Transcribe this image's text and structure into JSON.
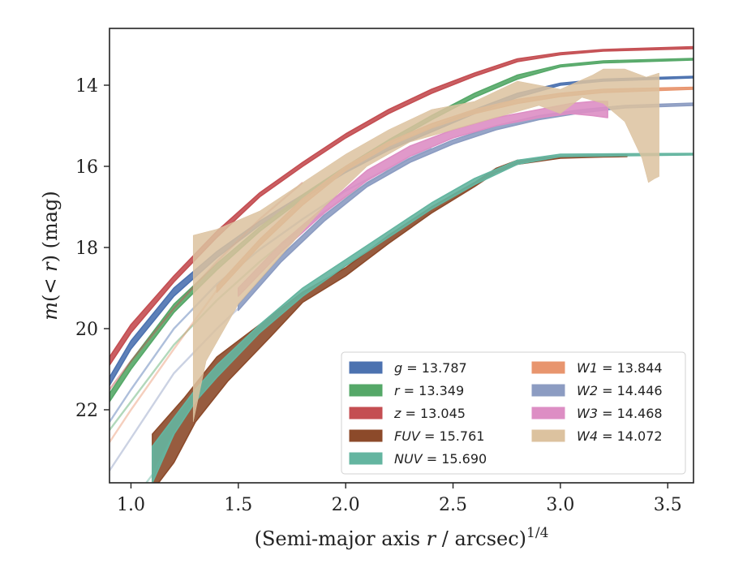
{
  "chart_data": {
    "type": "line",
    "title": "",
    "xlabel": "(Semi-major axis r / arcsec)",
    "xlabel_var": "r",
    "xlabel_prefix": "(Semi-major axis ",
    "xlabel_suffix": " / arcsec)",
    "xlabel_sup": "1/4",
    "ylabel_prefix": "m(< ",
    "ylabel_var": "r",
    "ylabel_suffix": ") (mag)",
    "xlim": [
      0.9,
      3.62
    ],
    "ylim": [
      23.8,
      12.6
    ],
    "y_inverted": true,
    "xticks": [
      1.0,
      1.5,
      2.0,
      2.5,
      3.0,
      3.5
    ],
    "xtick_labels": [
      "1.0",
      "1.5",
      "2.0",
      "2.5",
      "3.0",
      "3.5"
    ],
    "yticks": [
      14,
      16,
      18,
      20,
      22
    ],
    "ytick_labels": [
      "14",
      "16",
      "18",
      "20",
      "22"
    ],
    "grid": false,
    "legend_position": "lower-right",
    "series": [
      {
        "name": "g",
        "label_value": "= 13.787",
        "color": "#4c72b0",
        "style": "band",
        "upper": [
          [
            0.9,
            21.2
          ],
          [
            1.0,
            20.3
          ],
          [
            1.2,
            19.0
          ],
          [
            1.4,
            18.1
          ],
          [
            1.6,
            17.35
          ],
          [
            1.8,
            16.7
          ],
          [
            2.0,
            16.05
          ],
          [
            2.2,
            15.5
          ],
          [
            2.4,
            15.05
          ],
          [
            2.6,
            14.6
          ],
          [
            2.8,
            14.2
          ],
          [
            3.0,
            13.95
          ],
          [
            3.2,
            13.85
          ],
          [
            3.62,
            13.78
          ]
        ],
        "lower": [
          [
            0.9,
            21.4
          ],
          [
            1.0,
            20.5
          ],
          [
            1.2,
            19.2
          ],
          [
            1.4,
            18.25
          ],
          [
            1.6,
            17.45
          ],
          [
            1.8,
            16.8
          ],
          [
            2.0,
            16.15
          ],
          [
            2.2,
            15.6
          ],
          [
            2.4,
            15.15
          ],
          [
            2.6,
            14.7
          ],
          [
            2.8,
            14.3
          ],
          [
            3.0,
            14.0
          ],
          [
            3.2,
            13.9
          ],
          [
            3.62,
            13.82
          ]
        ],
        "faint": [
          [
            0.9,
            22.3
          ],
          [
            1.0,
            21.5
          ],
          [
            1.2,
            20.0
          ],
          [
            1.4,
            18.9
          ],
          [
            1.6,
            18.05
          ],
          [
            1.8,
            17.3
          ],
          [
            2.0,
            16.6
          ],
          [
            2.2,
            16.05
          ],
          [
            2.4,
            15.55
          ]
        ]
      },
      {
        "name": "r",
        "label_value": "= 13.349",
        "color": "#55a868",
        "style": "band",
        "upper": [
          [
            0.9,
            21.6
          ],
          [
            1.0,
            20.8
          ],
          [
            1.2,
            19.4
          ],
          [
            1.4,
            18.4
          ],
          [
            1.6,
            17.5
          ],
          [
            1.8,
            16.7
          ],
          [
            2.0,
            16.0
          ],
          [
            2.2,
            15.35
          ],
          [
            2.4,
            14.75
          ],
          [
            2.6,
            14.2
          ],
          [
            2.8,
            13.75
          ],
          [
            3.0,
            13.5
          ],
          [
            3.2,
            13.4
          ],
          [
            3.62,
            13.34
          ]
        ],
        "lower": [
          [
            0.9,
            21.8
          ],
          [
            1.0,
            21.0
          ],
          [
            1.2,
            19.6
          ],
          [
            1.4,
            18.55
          ],
          [
            1.6,
            17.6
          ],
          [
            1.8,
            16.8
          ],
          [
            2.0,
            16.1
          ],
          [
            2.2,
            15.45
          ],
          [
            2.4,
            14.85
          ],
          [
            2.6,
            14.3
          ],
          [
            2.8,
            13.85
          ],
          [
            3.0,
            13.55
          ],
          [
            3.2,
            13.45
          ],
          [
            3.62,
            13.38
          ]
        ],
        "faint": [
          [
            0.9,
            22.5
          ],
          [
            1.0,
            21.8
          ],
          [
            1.2,
            20.4
          ],
          [
            1.4,
            19.3
          ],
          [
            1.6,
            18.35
          ],
          [
            1.8,
            17.5
          ],
          [
            2.0,
            16.75
          ],
          [
            2.2,
            16.1
          ]
        ]
      },
      {
        "name": "z",
        "label_value": "= 13.045",
        "color": "#c44e52",
        "style": "band",
        "upper": [
          [
            0.9,
            20.7
          ],
          [
            1.0,
            19.9
          ],
          [
            1.2,
            18.7
          ],
          [
            1.4,
            17.6
          ],
          [
            1.6,
            16.65
          ],
          [
            1.8,
            15.9
          ],
          [
            2.0,
            15.2
          ],
          [
            2.2,
            14.6
          ],
          [
            2.4,
            14.1
          ],
          [
            2.6,
            13.7
          ],
          [
            2.8,
            13.35
          ],
          [
            3.0,
            13.2
          ],
          [
            3.2,
            13.12
          ],
          [
            3.62,
            13.05
          ]
        ],
        "lower": [
          [
            0.9,
            20.9
          ],
          [
            1.0,
            20.1
          ],
          [
            1.2,
            18.85
          ],
          [
            1.4,
            17.75
          ],
          [
            1.6,
            16.75
          ],
          [
            1.8,
            16.0
          ],
          [
            2.0,
            15.3
          ],
          [
            2.2,
            14.7
          ],
          [
            2.4,
            14.2
          ],
          [
            2.6,
            13.78
          ],
          [
            2.8,
            13.42
          ],
          [
            3.0,
            13.25
          ],
          [
            3.2,
            13.16
          ],
          [
            3.62,
            13.1
          ]
        ],
        "faint": [
          [
            0.9,
            21.5
          ],
          [
            1.0,
            20.8
          ],
          [
            1.2,
            19.5
          ],
          [
            1.4,
            18.35
          ],
          [
            1.6,
            17.3
          ],
          [
            1.8,
            16.4
          ]
        ]
      },
      {
        "name": "FUV",
        "label_value": "= 15.761",
        "color": "#8c4a2a",
        "style": "band",
        "upper": [
          [
            1.1,
            22.6
          ],
          [
            1.25,
            21.7
          ],
          [
            1.4,
            20.7
          ],
          [
            1.6,
            19.9
          ],
          [
            1.8,
            19.1
          ],
          [
            2.0,
            18.5
          ],
          [
            2.2,
            17.7
          ],
          [
            2.4,
            17.0
          ],
          [
            2.6,
            16.4
          ],
          [
            2.7,
            16.05
          ],
          [
            2.8,
            15.85
          ],
          [
            3.0,
            15.75
          ],
          [
            3.2,
            15.73
          ],
          [
            3.31,
            15.72
          ]
        ],
        "lower": [
          [
            1.1,
            24.0
          ],
          [
            1.2,
            23.3
          ],
          [
            1.3,
            22.3
          ],
          [
            1.45,
            21.3
          ],
          [
            1.65,
            20.2
          ],
          [
            1.8,
            19.35
          ],
          [
            2.0,
            18.7
          ],
          [
            2.2,
            17.9
          ],
          [
            2.4,
            17.15
          ],
          [
            2.6,
            16.5
          ],
          [
            2.7,
            16.15
          ],
          [
            2.8,
            15.95
          ],
          [
            3.0,
            15.8
          ],
          [
            3.2,
            15.77
          ],
          [
            3.31,
            15.76
          ]
        ]
      },
      {
        "name": "NUV",
        "label_value": "= 15.690",
        "color": "#64b5a0",
        "style": "band",
        "upper": [
          [
            1.1,
            22.9
          ],
          [
            1.2,
            22.2
          ],
          [
            1.3,
            21.5
          ],
          [
            1.4,
            20.9
          ],
          [
            1.6,
            19.9
          ],
          [
            1.8,
            19.0
          ],
          [
            2.0,
            18.3
          ],
          [
            2.2,
            17.6
          ],
          [
            2.4,
            16.9
          ],
          [
            2.6,
            16.3
          ],
          [
            2.8,
            15.85
          ],
          [
            3.0,
            15.7
          ],
          [
            3.62,
            15.68
          ]
        ],
        "lower": [
          [
            1.1,
            23.8
          ],
          [
            1.2,
            22.6
          ],
          [
            1.3,
            21.8
          ],
          [
            1.4,
            21.2
          ],
          [
            1.6,
            20.1
          ],
          [
            1.8,
            19.2
          ],
          [
            2.0,
            18.45
          ],
          [
            2.2,
            17.75
          ],
          [
            2.4,
            17.05
          ],
          [
            2.6,
            16.45
          ],
          [
            2.8,
            15.95
          ],
          [
            3.0,
            15.76
          ],
          [
            3.62,
            15.72
          ]
        ],
        "faint": [
          [
            0.9,
            25.0
          ],
          [
            1.0,
            24.3
          ],
          [
            1.1,
            23.6
          ],
          [
            1.2,
            22.6
          ]
        ]
      },
      {
        "name": "W1",
        "label_value": "= 13.844",
        "color": "#e8956e",
        "style": "band",
        "upper": [
          [
            1.4,
            18.95
          ],
          [
            1.6,
            17.8
          ],
          [
            1.8,
            16.8
          ],
          [
            2.0,
            16.0
          ],
          [
            2.2,
            15.4
          ],
          [
            2.4,
            14.95
          ],
          [
            2.6,
            14.6
          ],
          [
            2.8,
            14.35
          ],
          [
            3.0,
            14.2
          ],
          [
            3.2,
            14.1
          ],
          [
            3.62,
            14.05
          ]
        ],
        "lower": [
          [
            1.4,
            19.1
          ],
          [
            1.6,
            17.95
          ],
          [
            1.8,
            16.95
          ],
          [
            2.0,
            16.1
          ],
          [
            2.2,
            15.5
          ],
          [
            2.4,
            15.05
          ],
          [
            2.6,
            14.7
          ],
          [
            2.8,
            14.45
          ],
          [
            3.0,
            14.28
          ],
          [
            3.2,
            14.18
          ],
          [
            3.62,
            14.1
          ]
        ],
        "faint": [
          [
            0.9,
            22.8
          ],
          [
            1.0,
            22.0
          ],
          [
            1.2,
            20.5
          ],
          [
            1.4,
            19.05
          ]
        ]
      },
      {
        "name": "W2",
        "label_value": "= 14.446",
        "color": "#8c9cc2",
        "style": "band",
        "upper": [
          [
            1.5,
            19.4
          ],
          [
            1.7,
            18.2
          ],
          [
            1.9,
            17.2
          ],
          [
            2.1,
            16.4
          ],
          [
            2.3,
            15.8
          ],
          [
            2.5,
            15.35
          ],
          [
            2.7,
            15.0
          ],
          [
            2.9,
            14.75
          ],
          [
            3.1,
            14.6
          ],
          [
            3.3,
            14.5
          ],
          [
            3.62,
            14.44
          ]
        ],
        "lower": [
          [
            1.5,
            19.55
          ],
          [
            1.7,
            18.35
          ],
          [
            1.9,
            17.35
          ],
          [
            2.1,
            16.5
          ],
          [
            2.3,
            15.9
          ],
          [
            2.5,
            15.45
          ],
          [
            2.7,
            15.1
          ],
          [
            2.9,
            14.85
          ],
          [
            3.1,
            14.68
          ],
          [
            3.3,
            14.56
          ],
          [
            3.62,
            14.5
          ]
        ],
        "faint": [
          [
            0.9,
            23.5
          ],
          [
            1.0,
            22.7
          ],
          [
            1.2,
            21.1
          ],
          [
            1.4,
            20.0
          ],
          [
            1.5,
            19.5
          ]
        ]
      },
      {
        "name": "W3",
        "label_value": "= 14.468",
        "color": "#dd8ec4",
        "style": "band",
        "upper": [
          [
            1.5,
            19.0
          ],
          [
            1.7,
            17.9
          ],
          [
            1.9,
            17.0
          ],
          [
            2.1,
            16.1
          ],
          [
            2.3,
            15.5
          ],
          [
            2.5,
            15.1
          ],
          [
            2.7,
            14.8
          ],
          [
            2.9,
            14.6
          ],
          [
            3.05,
            14.45
          ],
          [
            3.15,
            14.4
          ],
          [
            3.22,
            14.4
          ]
        ],
        "lower": [
          [
            1.5,
            19.2
          ],
          [
            1.7,
            18.1
          ],
          [
            1.9,
            17.15
          ],
          [
            2.1,
            16.35
          ],
          [
            2.3,
            15.75
          ],
          [
            2.5,
            15.3
          ],
          [
            2.7,
            15.0
          ],
          [
            2.9,
            14.8
          ],
          [
            3.05,
            14.7
          ],
          [
            3.15,
            14.75
          ],
          [
            3.22,
            14.8
          ]
        ]
      },
      {
        "name": "W4",
        "label_value": "= 14.072",
        "color": "#dcc29f",
        "style": "band",
        "upper": [
          [
            1.29,
            17.7
          ],
          [
            1.4,
            17.55
          ],
          [
            1.6,
            17.1
          ],
          [
            1.8,
            16.4
          ],
          [
            2.0,
            15.7
          ],
          [
            2.2,
            15.1
          ],
          [
            2.4,
            14.6
          ],
          [
            2.6,
            14.4
          ],
          [
            2.8,
            13.9
          ],
          [
            3.0,
            14.1
          ],
          [
            3.15,
            13.75
          ],
          [
            3.2,
            13.6
          ],
          [
            3.3,
            13.6
          ],
          [
            3.4,
            13.8
          ],
          [
            3.46,
            13.7
          ]
        ],
        "lower": [
          [
            1.29,
            22.3
          ],
          [
            1.35,
            20.8
          ],
          [
            1.5,
            19.4
          ],
          [
            1.7,
            18.2
          ],
          [
            1.9,
            17.0
          ],
          [
            2.1,
            16.0
          ],
          [
            2.3,
            15.4
          ],
          [
            2.5,
            15.1
          ],
          [
            2.7,
            14.8
          ],
          [
            2.9,
            14.5
          ],
          [
            3.0,
            14.7
          ],
          [
            3.1,
            14.3
          ],
          [
            3.2,
            14.45
          ],
          [
            3.3,
            14.9
          ],
          [
            3.38,
            15.8
          ],
          [
            3.41,
            16.4
          ],
          [
            3.44,
            16.3
          ],
          [
            3.46,
            16.25
          ]
        ]
      }
    ]
  }
}
